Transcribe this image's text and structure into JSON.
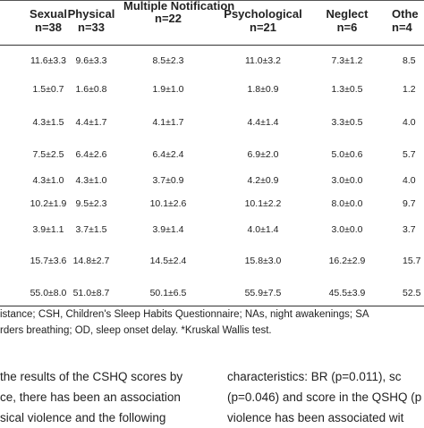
{
  "table": {
    "columns": [
      {
        "title": "Sexual",
        "n": "n=38"
      },
      {
        "title": "Physical",
        "n": "n=33"
      },
      {
        "title": "Multiple Notification",
        "n": "n=22"
      },
      {
        "title": "Psychological",
        "n": "n=21"
      },
      {
        "title": "Neglect",
        "n": "n=6"
      },
      {
        "title": "Othe",
        "n": "n=4"
      }
    ],
    "rows": [
      [
        "11.6±3.3",
        "9.6±3.3",
        "8.5±2.3",
        "11.0±3.2",
        "7.3±1.2",
        "8.5"
      ],
      [
        "1.5±0.7",
        "1.6±0.8",
        "1.9±1.0",
        "1.8±0.9",
        "1.3±0.5",
        "1.2"
      ],
      [
        "4.3±1.5",
        "4.4±1.7",
        "4.1±1.7",
        "4.4±1.4",
        "3.3±0.5",
        "4.0"
      ],
      [
        "7.5±2.5",
        "6.4±2.6",
        "6.4±2.4",
        "6.9±2.0",
        "5.0±0.6",
        "5.7"
      ],
      [
        "4.3±1.0",
        "4.3±1.0",
        "3.7±0.9",
        "4.2±0.9",
        "3.0±0.0",
        "4.0"
      ],
      [
        "10.2±1.9",
        "9.5±2.3",
        "10.1±2.6",
        "10.1±2.2",
        "8.0±0.0",
        "9.7"
      ],
      [
        "3.9±1.1",
        "3.7±1.5",
        "3.9±1.4",
        "4.0±1.4",
        "3.0±0.0",
        "3.7"
      ],
      [
        "15.7±3.6",
        "14.8±2.7",
        "14.5±2.4",
        "15.8±3.0",
        "16.2±2.9",
        "15.7"
      ],
      [
        "55.0±8.0",
        "51.0±8.7",
        "50.1±6.5",
        "55.9±7.5",
        "45.5±3.9",
        "52.5"
      ]
    ]
  },
  "footnote": {
    "line1": "istance; CSH, Children's Sleep Habits Questionnaire; NAs, night awakenings; SA",
    "line2": "rders breathing; OD, sleep onset delay. *Kruskal Wallis test."
  },
  "body_text": {
    "left": [
      "the results of the CSHQ scores by",
      "ce, there has been an association",
      "sical violence and the following"
    ],
    "right": [
      "characteristics: BR (p=0.011), sc",
      "(p=0.046) and score in the QSHQ (p",
      "violence has been associated wit"
    ]
  }
}
